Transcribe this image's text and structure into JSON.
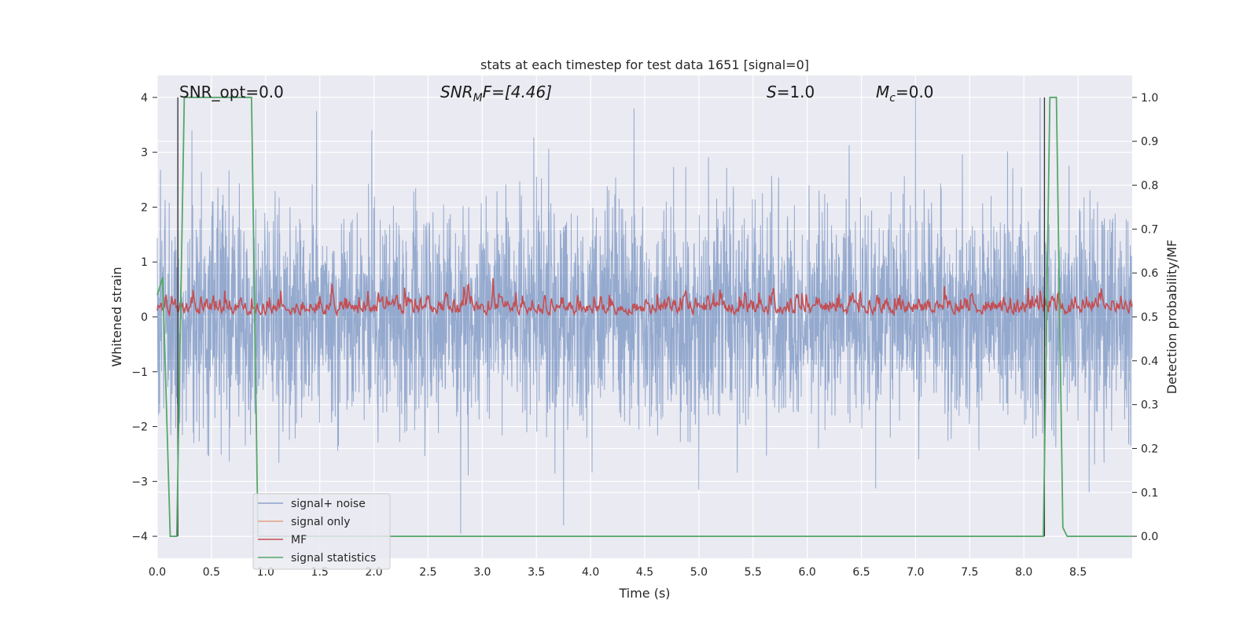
{
  "chart_data": {
    "type": "line",
    "title": "stats at each timestep for test data 1651 [signal=0]",
    "xlabel": "Time (s)",
    "ylabel_left": "Whitened strain",
    "ylabel_right": "Detection probability/MF",
    "xlim": [
      0.0,
      9.0
    ],
    "ylim_left": [
      -4.4,
      4.4
    ],
    "ylim_right": [
      -0.05,
      1.05
    ],
    "x_ticks": [
      0.0,
      0.5,
      1.0,
      1.5,
      2.0,
      2.5,
      3.0,
      3.5,
      4.0,
      4.5,
      5.0,
      5.5,
      6.0,
      6.5,
      7.0,
      7.5,
      8.0,
      8.5
    ],
    "x_tick_labels": [
      "0.0",
      "0.5",
      "1.0",
      "1.5",
      "2.0",
      "2.5",
      "3.0",
      "3.5",
      "4.0",
      "4.5",
      "5.0",
      "5.5",
      "6.0",
      "6.5",
      "7.0",
      "7.5",
      "8.0",
      "8.5"
    ],
    "y_left_ticks": [
      -4,
      -3,
      -2,
      -1,
      0,
      1,
      2,
      3,
      4
    ],
    "y_left_tick_labels": [
      "−4",
      "−3",
      "−2",
      "−1",
      "0",
      "1",
      "2",
      "3",
      "4"
    ],
    "y_right_ticks": [
      0.0,
      0.1,
      0.2,
      0.3,
      0.4,
      0.5,
      0.6,
      0.7,
      0.8,
      0.9,
      1.0
    ],
    "y_right_tick_labels": [
      "0.0",
      "0.1",
      "0.2",
      "0.3",
      "0.4",
      "0.5",
      "0.6",
      "0.7",
      "0.8",
      "0.9",
      "1.0"
    ],
    "grid": true,
    "legend_placement": "lower-left",
    "annotations": [
      {
        "id": "snr-opt",
        "text": "SNR_opt=0.0",
        "x": 0.19
      },
      {
        "id": "snr-mf",
        "text_main": "SNR",
        "text_sub": "M",
        "text_rest": "F=[4.46]",
        "x": 2.6
      },
      {
        "id": "s-value",
        "text_italic": "S",
        "text_rest": "=1.0",
        "x": 5.6
      },
      {
        "id": "mc-value",
        "text_italic": "M",
        "text_sub": "c",
        "text_rest": "=0.0",
        "x": 6.6
      }
    ],
    "series": [
      {
        "name": "signal+ noise",
        "axis": "left",
        "color": "#4c72b0",
        "alpha": 0.5,
        "description_values": "dense noise spanning roughly -3.9 to 4.0",
        "peaks": [
          {
            "x": 0.19,
            "y": 4.0
          },
          {
            "x": 0.32,
            "y": 3.4
          },
          {
            "x": 1.47,
            "y": 3.75
          },
          {
            "x": 1.98,
            "y": 3.4
          },
          {
            "x": 2.8,
            "y": -3.95
          },
          {
            "x": 3.75,
            "y": -3.8
          },
          {
            "x": 4.4,
            "y": 3.8
          },
          {
            "x": 5.0,
            "y": -3.15
          },
          {
            "x": 7.0,
            "y": 4.0
          },
          {
            "x": 8.15,
            "y": 4.0
          }
        ]
      },
      {
        "name": "signal only",
        "axis": "left",
        "color": "#dd8452",
        "values": []
      },
      {
        "name": "MF",
        "axis": "right",
        "color": "#c44e52",
        "description_values": "fluctuating between about 0.50 and 0.62"
      },
      {
        "name": "signal statistics",
        "axis": "right",
        "color": "#55a868",
        "x": [
          0.0,
          0.05,
          0.12,
          0.18,
          0.25,
          0.8,
          0.87,
          0.93,
          8.18,
          8.24,
          8.3,
          8.36,
          8.4,
          8.5,
          9.0
        ],
        "y": [
          0.55,
          0.59,
          0.0,
          0.0,
          1.0,
          1.0,
          1.0,
          0.0,
          0.0,
          1.0,
          1.0,
          0.02,
          0.0,
          0.0,
          0.0
        ]
      }
    ],
    "vertical_markers": [
      0.19,
      8.19
    ],
    "legend": [
      "signal+ noise",
      "signal only",
      "MF",
      "signal statistics"
    ]
  }
}
